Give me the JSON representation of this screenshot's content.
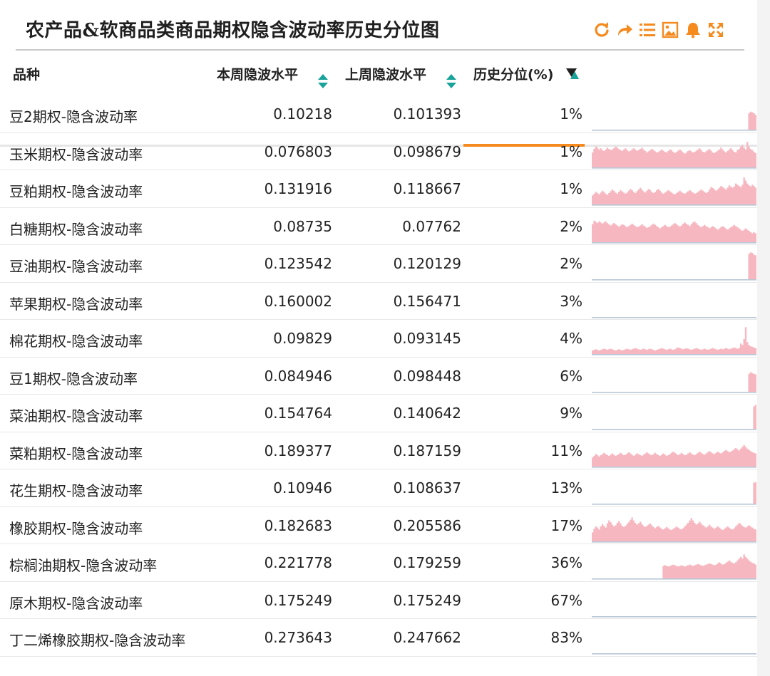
{
  "title": "农产品&软商品类商品期权隐含波动率历史分位图",
  "toolbar": [
    {
      "icon": "refresh-icon",
      "label": "刷新"
    },
    {
      "icon": "share-icon",
      "label": "分享"
    },
    {
      "icon": "list-icon",
      "label": "列表"
    },
    {
      "icon": "image-icon",
      "label": "图片"
    },
    {
      "icon": "bell-icon",
      "label": "提醒"
    },
    {
      "icon": "fullscreen-icon",
      "label": "全屏"
    }
  ],
  "columns": {
    "name": "品种",
    "current": "本周隐波水平",
    "previous": "上周隐波水平",
    "percentile": "历史分位(%)"
  },
  "colors": {
    "accent": "#f58a1f",
    "sort_teal": "#1aa39a",
    "spark_fill": "#f7b7c0",
    "spark_line": "#b9c7d6"
  },
  "rows": [
    {
      "name": "豆2期权-隐含波动率",
      "current": "0.10218",
      "previous": "0.101393",
      "percentile": "1%",
      "spark": [
        0,
        0,
        0,
        0,
        0,
        0,
        0,
        0,
        0,
        0,
        0,
        0,
        0,
        0,
        0,
        0,
        0,
        0,
        0,
        0,
        0,
        0,
        0,
        0,
        0,
        0,
        0,
        0,
        0,
        0,
        0,
        0,
        0,
        0,
        0,
        0,
        0,
        0,
        0,
        0,
        0,
        0,
        0,
        0,
        0,
        0,
        0,
        0,
        0,
        0,
        0,
        0,
        0,
        0,
        0,
        0,
        0,
        0,
        0,
        0,
        0,
        0,
        0,
        0,
        0,
        0,
        0,
        0,
        0,
        0,
        0,
        0,
        0,
        0,
        0,
        0,
        0,
        0,
        0,
        0,
        0,
        0,
        0,
        0,
        0,
        0,
        0,
        0,
        0,
        0,
        0,
        0,
        0,
        0,
        0,
        0.55,
        0.6,
        0.58,
        0.55,
        0.5
      ]
    },
    {
      "name": "玉米期权-隐含波动率",
      "current": "0.076803",
      "previous": "0.098679",
      "percentile": "1%",
      "spark": [
        0.5,
        0.62,
        0.7,
        0.66,
        0.6,
        0.64,
        0.58,
        0.55,
        0.6,
        0.66,
        0.62,
        0.58,
        0.6,
        0.64,
        0.7,
        0.66,
        0.62,
        0.58,
        0.55,
        0.6,
        0.64,
        0.58,
        0.54,
        0.56,
        0.6,
        0.64,
        0.6,
        0.56,
        0.58,
        0.62,
        0.66,
        0.6,
        0.55,
        0.5,
        0.54,
        0.58,
        0.62,
        0.58,
        0.54,
        0.5,
        0.52,
        0.56,
        0.6,
        0.56,
        0.52,
        0.5,
        0.55,
        0.6,
        0.58,
        0.52,
        0.48,
        0.52,
        0.56,
        0.6,
        0.56,
        0.5,
        0.46,
        0.5,
        0.55,
        0.58,
        0.54,
        0.5,
        0.52,
        0.56,
        0.6,
        0.64,
        0.58,
        0.52,
        0.5,
        0.54,
        0.58,
        0.62,
        0.56,
        0.5,
        0.48,
        0.52,
        0.56,
        0.6,
        0.66,
        0.6,
        0.54,
        0.5,
        0.55,
        0.6,
        0.64,
        0.58,
        0.52,
        0.5,
        0.58,
        0.62,
        0.7,
        0.75,
        0.66,
        0.6,
        0.85,
        0.7,
        0.62,
        0.58,
        0.52,
        0.48
      ]
    },
    {
      "name": "豆粕期权-隐含波动率",
      "current": "0.131916",
      "previous": "0.118667",
      "percentile": "1%",
      "spark": [
        0.3,
        0.36,
        0.42,
        0.38,
        0.34,
        0.4,
        0.46,
        0.42,
        0.36,
        0.32,
        0.38,
        0.44,
        0.5,
        0.46,
        0.4,
        0.36,
        0.42,
        0.48,
        0.44,
        0.4,
        0.36,
        0.4,
        0.46,
        0.52,
        0.48,
        0.42,
        0.38,
        0.44,
        0.5,
        0.56,
        0.5,
        0.44,
        0.4,
        0.46,
        0.52,
        0.48,
        0.42,
        0.38,
        0.42,
        0.48,
        0.52,
        0.46,
        0.4,
        0.36,
        0.4,
        0.44,
        0.48,
        0.44,
        0.4,
        0.36,
        0.34,
        0.38,
        0.42,
        0.46,
        0.42,
        0.38,
        0.36,
        0.4,
        0.44,
        0.48,
        0.44,
        0.4,
        0.36,
        0.38,
        0.42,
        0.46,
        0.5,
        0.46,
        0.42,
        0.38,
        0.42,
        0.5,
        0.58,
        0.55,
        0.5,
        0.46,
        0.5,
        0.56,
        0.62,
        0.58,
        0.54,
        0.5,
        0.56,
        0.64,
        0.6,
        0.56,
        0.6,
        0.7,
        0.66,
        0.62,
        0.58,
        0.66,
        0.9,
        0.8,
        0.7,
        0.64,
        0.6,
        0.66,
        0.62,
        0.56
      ]
    },
    {
      "name": "白糖期权-隐含波动率",
      "current": "0.08735",
      "previous": "0.07762",
      "percentile": "2%",
      "spark": [
        0.6,
        0.72,
        0.68,
        0.64,
        0.7,
        0.66,
        0.62,
        0.66,
        0.7,
        0.64,
        0.6,
        0.56,
        0.6,
        0.64,
        0.6,
        0.56,
        0.52,
        0.56,
        0.6,
        0.58,
        0.54,
        0.5,
        0.54,
        0.58,
        0.62,
        0.58,
        0.54,
        0.5,
        0.52,
        0.56,
        0.6,
        0.56,
        0.52,
        0.48,
        0.5,
        0.54,
        0.58,
        0.62,
        0.58,
        0.54,
        0.5,
        0.46,
        0.5,
        0.54,
        0.58,
        0.54,
        0.5,
        0.52,
        0.56,
        0.6,
        0.64,
        0.6,
        0.56,
        0.52,
        0.56,
        0.62,
        0.66,
        0.62,
        0.58,
        0.54,
        0.6,
        0.66,
        0.7,
        0.64,
        0.58,
        0.54,
        0.5,
        0.54,
        0.58,
        0.54,
        0.5,
        0.46,
        0.5,
        0.54,
        0.5,
        0.46,
        0.42,
        0.46,
        0.5,
        0.54,
        0.5,
        0.46,
        0.42,
        0.46,
        0.5,
        0.54,
        0.58,
        0.54,
        0.5,
        0.46,
        0.42,
        0.38,
        0.42,
        0.46,
        0.42,
        0.38,
        0.34,
        0.3,
        0.34,
        0.3
      ]
    },
    {
      "name": "豆油期权-隐含波动率",
      "current": "0.123542",
      "previous": "0.120129",
      "percentile": "2%",
      "spark": [
        0,
        0,
        0,
        0,
        0,
        0,
        0,
        0,
        0,
        0,
        0,
        0,
        0,
        0,
        0,
        0,
        0,
        0,
        0,
        0,
        0,
        0,
        0,
        0,
        0,
        0,
        0,
        0,
        0,
        0,
        0,
        0,
        0,
        0,
        0,
        0,
        0,
        0,
        0,
        0,
        0,
        0,
        0,
        0,
        0,
        0,
        0,
        0,
        0,
        0,
        0,
        0,
        0,
        0,
        0,
        0,
        0,
        0,
        0,
        0,
        0,
        0,
        0,
        0,
        0,
        0,
        0,
        0,
        0,
        0,
        0,
        0,
        0,
        0,
        0,
        0,
        0,
        0,
        0,
        0,
        0,
        0,
        0,
        0,
        0,
        0,
        0,
        0,
        0,
        0,
        0,
        0,
        0,
        0,
        0,
        0.85,
        0.9,
        0.88,
        0.82,
        0.8
      ]
    },
    {
      "name": "苹果期权-隐含波动率",
      "current": "0.160002",
      "previous": "0.156471",
      "percentile": "3%",
      "spark": []
    },
    {
      "name": "棉花期权-隐含波动率",
      "current": "0.09829",
      "previous": "0.093145",
      "percentile": "4%",
      "spark": [
        0.12,
        0.14,
        0.16,
        0.14,
        0.12,
        0.14,
        0.16,
        0.18,
        0.16,
        0.14,
        0.16,
        0.18,
        0.16,
        0.14,
        0.12,
        0.14,
        0.16,
        0.14,
        0.12,
        0.14,
        0.16,
        0.18,
        0.16,
        0.14,
        0.16,
        0.18,
        0.2,
        0.18,
        0.16,
        0.14,
        0.16,
        0.18,
        0.16,
        0.14,
        0.16,
        0.18,
        0.16,
        0.14,
        0.12,
        0.14,
        0.16,
        0.18,
        0.2,
        0.18,
        0.16,
        0.14,
        0.16,
        0.18,
        0.16,
        0.14,
        0.16,
        0.2,
        0.22,
        0.2,
        0.18,
        0.16,
        0.18,
        0.2,
        0.18,
        0.16,
        0.14,
        0.16,
        0.18,
        0.2,
        0.18,
        0.16,
        0.14,
        0.16,
        0.18,
        0.16,
        0.14,
        0.16,
        0.18,
        0.2,
        0.18,
        0.16,
        0.14,
        0.16,
        0.18,
        0.16,
        0.18,
        0.2,
        0.18,
        0.16,
        0.18,
        0.2,
        0.22,
        0.2,
        0.18,
        0.2,
        0.35,
        0.3,
        0.5,
        0.9,
        0.4,
        0.3,
        0.26,
        0.24,
        0.22,
        0.2
      ]
    },
    {
      "name": "豆1期权-隐含波动率",
      "current": "0.084946",
      "previous": "0.098448",
      "percentile": "6%",
      "spark": [
        0,
        0,
        0,
        0,
        0,
        0,
        0,
        0,
        0,
        0,
        0,
        0,
        0,
        0,
        0,
        0,
        0,
        0,
        0,
        0,
        0,
        0,
        0,
        0,
        0,
        0,
        0,
        0,
        0,
        0,
        0,
        0,
        0,
        0,
        0,
        0,
        0,
        0,
        0,
        0,
        0,
        0,
        0,
        0,
        0,
        0,
        0,
        0,
        0,
        0,
        0,
        0,
        0,
        0,
        0,
        0,
        0,
        0,
        0,
        0,
        0,
        0,
        0,
        0,
        0,
        0,
        0,
        0,
        0,
        0,
        0,
        0,
        0,
        0,
        0,
        0,
        0,
        0,
        0,
        0,
        0,
        0,
        0,
        0,
        0,
        0,
        0,
        0,
        0,
        0,
        0,
        0,
        0,
        0,
        0,
        0.6,
        0.66,
        0.62,
        0.6,
        0.58
      ]
    },
    {
      "name": "菜油期权-隐含波动率",
      "current": "0.154764",
      "previous": "0.140642",
      "percentile": "9%",
      "spark": [
        0,
        0,
        0,
        0,
        0,
        0,
        0,
        0,
        0,
        0,
        0,
        0,
        0,
        0,
        0,
        0,
        0,
        0,
        0,
        0,
        0,
        0,
        0,
        0,
        0,
        0,
        0,
        0,
        0,
        0,
        0,
        0,
        0,
        0,
        0,
        0,
        0,
        0,
        0,
        0,
        0,
        0,
        0,
        0,
        0,
        0,
        0,
        0,
        0,
        0,
        0,
        0,
        0,
        0,
        0,
        0,
        0,
        0,
        0,
        0,
        0,
        0,
        0,
        0,
        0,
        0,
        0,
        0,
        0,
        0,
        0,
        0,
        0,
        0,
        0,
        0,
        0,
        0,
        0,
        0,
        0,
        0,
        0,
        0,
        0,
        0,
        0,
        0,
        0,
        0,
        0,
        0,
        0,
        0,
        0,
        0,
        0,
        0,
        0.75,
        0.8
      ]
    },
    {
      "name": "菜粕期权-隐含波动率",
      "current": "0.189377",
      "previous": "0.187159",
      "percentile": "11%",
      "spark": [
        0.3,
        0.36,
        0.42,
        0.38,
        0.34,
        0.38,
        0.42,
        0.46,
        0.42,
        0.38,
        0.36,
        0.4,
        0.44,
        0.4,
        0.36,
        0.38,
        0.42,
        0.46,
        0.42,
        0.38,
        0.4,
        0.44,
        0.48,
        0.44,
        0.4,
        0.36,
        0.4,
        0.44,
        0.42,
        0.38,
        0.36,
        0.4,
        0.44,
        0.48,
        0.44,
        0.4,
        0.38,
        0.42,
        0.46,
        0.42,
        0.38,
        0.36,
        0.4,
        0.44,
        0.4,
        0.36,
        0.38,
        0.42,
        0.46,
        0.5,
        0.46,
        0.42,
        0.38,
        0.42,
        0.46,
        0.42,
        0.38,
        0.4,
        0.44,
        0.48,
        0.44,
        0.4,
        0.38,
        0.42,
        0.46,
        0.5,
        0.46,
        0.42,
        0.4,
        0.44,
        0.48,
        0.52,
        0.48,
        0.44,
        0.42,
        0.46,
        0.5,
        0.46,
        0.44,
        0.48,
        0.52,
        0.56,
        0.52,
        0.48,
        0.5,
        0.54,
        0.58,
        0.62,
        0.58,
        0.54,
        0.6,
        0.66,
        0.72,
        0.66,
        0.6,
        0.56,
        0.52,
        0.48,
        0.46,
        0.44
      ]
    },
    {
      "name": "花生期权-隐含波动率",
      "current": "0.10946",
      "previous": "0.108637",
      "percentile": "13%",
      "spark": [
        0,
        0,
        0,
        0,
        0,
        0,
        0,
        0,
        0,
        0,
        0,
        0,
        0,
        0,
        0,
        0,
        0,
        0,
        0,
        0,
        0,
        0,
        0,
        0,
        0,
        0,
        0,
        0,
        0,
        0,
        0,
        0,
        0,
        0,
        0,
        0,
        0,
        0,
        0,
        0,
        0,
        0,
        0,
        0,
        0,
        0,
        0,
        0,
        0,
        0,
        0,
        0,
        0,
        0,
        0,
        0,
        0,
        0,
        0,
        0,
        0,
        0,
        0,
        0,
        0,
        0,
        0,
        0,
        0,
        0,
        0,
        0,
        0,
        0,
        0,
        0,
        0,
        0,
        0,
        0,
        0,
        0,
        0,
        0,
        0,
        0,
        0,
        0,
        0,
        0,
        0,
        0,
        0,
        0,
        0,
        0,
        0,
        0,
        0.7,
        0.72
      ]
    },
    {
      "name": "橡胶期权-隐含波动率",
      "current": "0.182683",
      "previous": "0.205586",
      "percentile": "17%",
      "spark": [
        0.3,
        0.42,
        0.5,
        0.46,
        0.4,
        0.5,
        0.58,
        0.52,
        0.46,
        0.6,
        0.7,
        0.64,
        0.56,
        0.5,
        0.54,
        0.62,
        0.68,
        0.6,
        0.52,
        0.48,
        0.52,
        0.58,
        0.64,
        0.72,
        0.8,
        0.7,
        0.62,
        0.56,
        0.6,
        0.66,
        0.58,
        0.52,
        0.48,
        0.52,
        0.56,
        0.6,
        0.54,
        0.48,
        0.44,
        0.48,
        0.52,
        0.46,
        0.42,
        0.4,
        0.44,
        0.48,
        0.44,
        0.4,
        0.38,
        0.42,
        0.46,
        0.5,
        0.46,
        0.42,
        0.4,
        0.44,
        0.5,
        0.56,
        0.62,
        0.7,
        0.78,
        0.7,
        0.62,
        0.56,
        0.6,
        0.66,
        0.6,
        0.54,
        0.5,
        0.46,
        0.5,
        0.56,
        0.5,
        0.46,
        0.42,
        0.46,
        0.5,
        0.46,
        0.42,
        0.38,
        0.42,
        0.46,
        0.5,
        0.46,
        0.42,
        0.4,
        0.44,
        0.5,
        0.56,
        0.62,
        0.58,
        0.52,
        0.48,
        0.46,
        0.5,
        0.54,
        0.5,
        0.46,
        0.42,
        0.4
      ]
    },
    {
      "name": "棕榈油期权-隐含波动率",
      "current": "0.221778",
      "previous": "0.179259",
      "percentile": "36%",
      "spark": [
        0,
        0,
        0,
        0,
        0,
        0,
        0,
        0,
        0,
        0,
        0,
        0,
        0,
        0,
        0,
        0,
        0,
        0,
        0,
        0,
        0,
        0,
        0,
        0,
        0,
        0,
        0,
        0,
        0,
        0,
        0,
        0,
        0,
        0,
        0,
        0,
        0,
        0,
        0,
        0,
        0,
        0,
        0,
        0.42,
        0.44,
        0.42,
        0.4,
        0.42,
        0.44,
        0.46,
        0.44,
        0.42,
        0.4,
        0.42,
        0.44,
        0.42,
        0.4,
        0.42,
        0.44,
        0.46,
        0.44,
        0.42,
        0.44,
        0.46,
        0.48,
        0.46,
        0.44,
        0.42,
        0.44,
        0.46,
        0.48,
        0.5,
        0.48,
        0.46,
        0.44,
        0.46,
        0.5,
        0.54,
        0.5,
        0.46,
        0.48,
        0.52,
        0.56,
        0.6,
        0.56,
        0.52,
        0.5,
        0.54,
        0.6,
        0.66,
        0.72,
        0.66,
        0.8,
        0.72,
        0.66,
        0.6,
        0.56,
        0.52,
        0.5,
        0.46
      ]
    },
    {
      "name": "原木期权-隐含波动率",
      "current": "0.175249",
      "previous": "0.175249",
      "percentile": "67%",
      "spark": []
    },
    {
      "name": "丁二烯橡胶期权-隐含波动率",
      "current": "0.273643",
      "previous": "0.247662",
      "percentile": "83%",
      "spark": []
    }
  ]
}
